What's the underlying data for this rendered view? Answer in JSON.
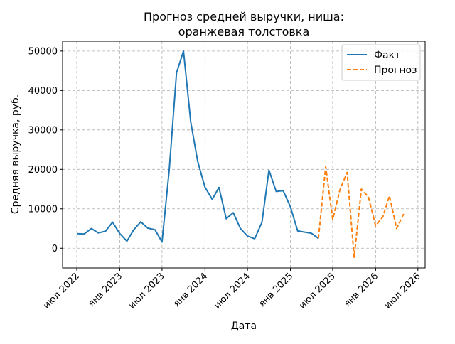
{
  "chart_data": {
    "type": "line",
    "title_line1": "Прогноз средней выручки, ниша:",
    "title_line2": "оранжевая толстовка",
    "xlabel": "Дата",
    "ylabel": "Средняя выручка, руб.",
    "ylim": [
      -5000,
      52500
    ],
    "yticks": [
      0,
      10000,
      20000,
      30000,
      40000,
      50000
    ],
    "xlim": [
      "2022-05-01",
      "2026-08-01"
    ],
    "xticks": [
      {
        "date": "2022-07-01",
        "label": "июл 2022"
      },
      {
        "date": "2023-01-01",
        "label": "янв 2023"
      },
      {
        "date": "2023-07-01",
        "label": "июл 2023"
      },
      {
        "date": "2024-01-01",
        "label": "янв 2024"
      },
      {
        "date": "2024-07-01",
        "label": "июл 2024"
      },
      {
        "date": "2025-01-01",
        "label": "янв 2025"
      },
      {
        "date": "2025-07-01",
        "label": "июл 2025"
      },
      {
        "date": "2026-01-01",
        "label": "янв 2026"
      },
      {
        "date": "2026-07-01",
        "label": "июл 2026"
      }
    ],
    "grid": true,
    "legend_position": "top-right",
    "series": [
      {
        "name": "Факт",
        "color": "#1f77b4",
        "style": "solid",
        "points": [
          [
            "2022-07-01",
            3700
          ],
          [
            "2022-08-01",
            3600
          ],
          [
            "2022-09-01",
            5000
          ],
          [
            "2022-10-01",
            3900
          ],
          [
            "2022-11-01",
            4300
          ],
          [
            "2022-12-01",
            6600
          ],
          [
            "2023-01-01",
            3700
          ],
          [
            "2023-02-01",
            1800
          ],
          [
            "2023-03-01",
            4600
          ],
          [
            "2023-04-01",
            6700
          ],
          [
            "2023-05-01",
            5100
          ],
          [
            "2023-06-01",
            4700
          ],
          [
            "2023-07-01",
            1600
          ],
          [
            "2023-08-01",
            20000
          ],
          [
            "2023-09-01",
            44500
          ],
          [
            "2023-10-01",
            50000
          ],
          [
            "2023-11-01",
            32000
          ],
          [
            "2023-12-01",
            22000
          ],
          [
            "2024-01-01",
            15500
          ],
          [
            "2024-02-01",
            12400
          ],
          [
            "2024-03-01",
            15400
          ],
          [
            "2024-04-01",
            7500
          ],
          [
            "2024-05-01",
            9000
          ],
          [
            "2024-06-01",
            5000
          ],
          [
            "2024-07-01",
            3100
          ],
          [
            "2024-08-01",
            2400
          ],
          [
            "2024-09-01",
            6600
          ],
          [
            "2024-10-01",
            19800
          ],
          [
            "2024-11-01",
            14400
          ],
          [
            "2024-12-01",
            14600
          ],
          [
            "2025-01-01",
            10500
          ],
          [
            "2025-02-01",
            4400
          ],
          [
            "2025-03-01",
            4100
          ],
          [
            "2025-04-01",
            3800
          ],
          [
            "2025-05-01",
            2500
          ]
        ]
      },
      {
        "name": "Прогноз",
        "color": "#ff7f0e",
        "style": "dashed",
        "points": [
          [
            "2025-05-01",
            2500
          ],
          [
            "2025-06-01",
            20700
          ],
          [
            "2025-07-01",
            7300
          ],
          [
            "2025-08-01",
            14800
          ],
          [
            "2025-09-01",
            19200
          ],
          [
            "2025-10-01",
            -2300
          ],
          [
            "2025-11-01",
            15000
          ],
          [
            "2025-12-01",
            13000
          ],
          [
            "2026-01-01",
            5700
          ],
          [
            "2026-02-01",
            8000
          ],
          [
            "2026-03-01",
            13300
          ],
          [
            "2026-04-01",
            5000
          ],
          [
            "2026-05-01",
            8700
          ]
        ]
      }
    ]
  }
}
